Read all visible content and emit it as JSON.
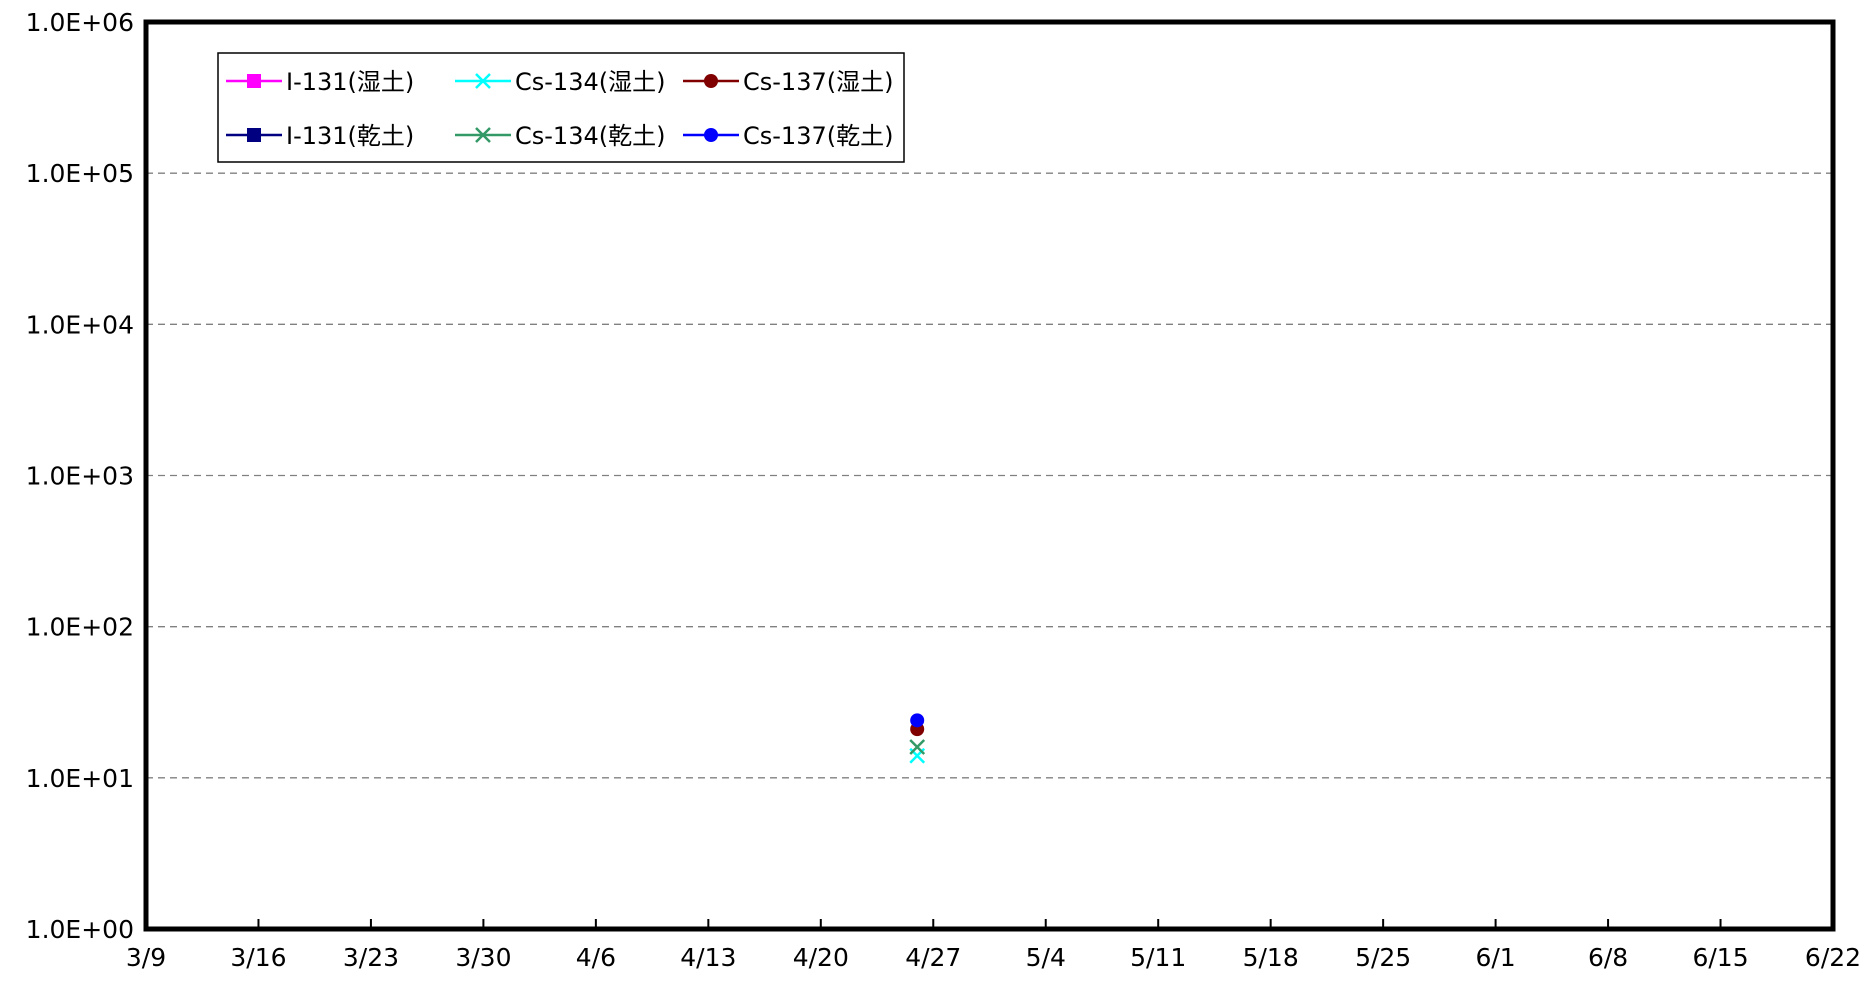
{
  "chart_data": {
    "type": "scatter",
    "title": "",
    "xlabel": "",
    "ylabel": "",
    "y_scale": "log",
    "ylim": [
      1,
      1000000
    ],
    "y_ticks": [
      {
        "value": 1,
        "label": "1.0E+00"
      },
      {
        "value": 10,
        "label": "1.0E+01"
      },
      {
        "value": 100,
        "label": "1.0E+02"
      },
      {
        "value": 1000,
        "label": "1.0E+03"
      },
      {
        "value": 10000,
        "label": "1.0E+04"
      },
      {
        "value": 100000,
        "label": "1.0E+05"
      },
      {
        "value": 1000000,
        "label": "1.0E+06"
      }
    ],
    "x_range": [
      "3/9",
      "6/22"
    ],
    "x_ticks": [
      "3/9",
      "3/16",
      "3/23",
      "3/30",
      "4/6",
      "4/13",
      "4/20",
      "4/27",
      "5/4",
      "5/11",
      "5/18",
      "5/25",
      "6/1",
      "6/8",
      "6/15",
      "6/22"
    ],
    "grid": {
      "horizontal": true,
      "style": "dashed"
    },
    "legend_position": "top-left",
    "series": [
      {
        "name": "I-131(湿土)",
        "color": "#FF00FF",
        "marker": "square",
        "points": []
      },
      {
        "name": "Cs-134(湿土)",
        "color": "#00FFFF",
        "marker": "x",
        "points": [
          {
            "x": "4/26",
            "y": 14
          }
        ]
      },
      {
        "name": "Cs-137(湿土)",
        "color": "#800000",
        "marker": "circle",
        "points": [
          {
            "x": "4/26",
            "y": 21
          }
        ]
      },
      {
        "name": "I-131(乾土)",
        "color": "#000080",
        "marker": "square",
        "points": []
      },
      {
        "name": "Cs-134(乾土)",
        "color": "#339966",
        "marker": "x",
        "points": [
          {
            "x": "4/26",
            "y": 16
          }
        ]
      },
      {
        "name": "Cs-137(乾土)",
        "color": "#0000FF",
        "marker": "circle",
        "points": [
          {
            "x": "4/26",
            "y": 24
          }
        ]
      }
    ]
  }
}
